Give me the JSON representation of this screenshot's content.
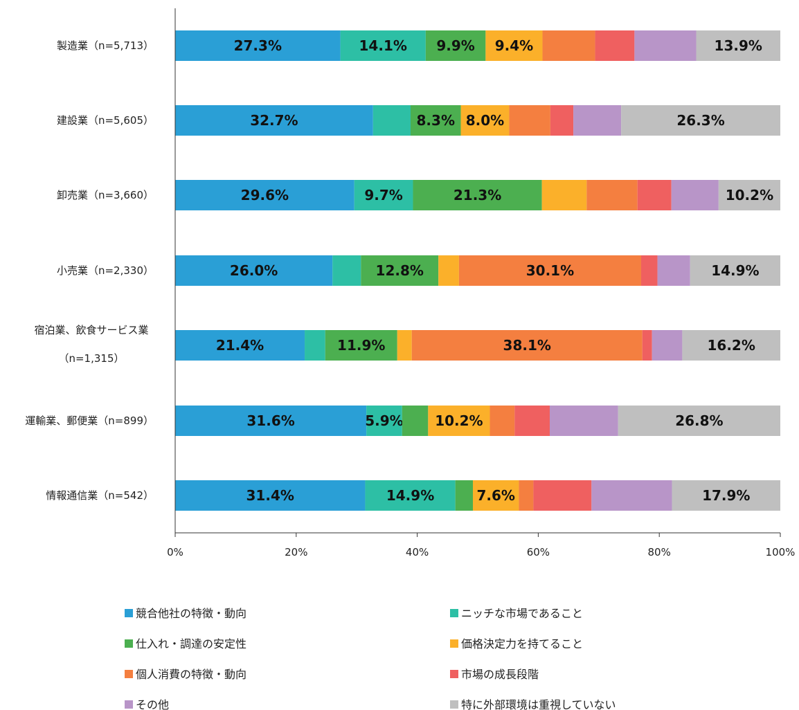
{
  "chart_data": {
    "type": "bar",
    "orientation": "horizontal",
    "stacked": "percent",
    "categories": [
      [
        "製造業（n=5,713）"
      ],
      [
        "建設業（n=5,605）"
      ],
      [
        "卸売業（n=3,660）"
      ],
      [
        "小売業（n=2,330）"
      ],
      [
        "宿泊業、飲食サービス業",
        "（n=1,315）"
      ],
      [
        "運輸業、郵便業（n=899）"
      ],
      [
        "情報通信業（n=542）"
      ]
    ],
    "xlim": [
      0,
      100
    ],
    "xticks": [
      "0%",
      "20%",
      "40%",
      "60%",
      "80%",
      "100%"
    ],
    "legend_position": "bottom",
    "grid": false,
    "series": [
      {
        "name": "競合他社の特徴・動向",
        "color": "#2a9fd6",
        "values": [
          27.3,
          32.7,
          29.6,
          26.0,
          21.4,
          31.6,
          31.4
        ],
        "labels": [
          "27.3%",
          "32.7%",
          "29.6%",
          "26.0%",
          "21.4%",
          "31.6%",
          "31.4%"
        ]
      },
      {
        "name": "ニッチな市場であること",
        "color": "#2dbfa5",
        "values": [
          14.1,
          6.2,
          9.7,
          4.7,
          3.4,
          5.9,
          14.9
        ],
        "labels": [
          "14.1%",
          null,
          "9.7%",
          null,
          null,
          "5.9%",
          "14.9%"
        ]
      },
      {
        "name": "仕入れ・調達の安定性",
        "color": "#4caf50",
        "values": [
          9.9,
          8.3,
          21.3,
          12.8,
          11.9,
          4.3,
          2.9
        ],
        "labels": [
          "9.9%",
          "8.3%",
          "21.3%",
          "12.8%",
          "11.9%",
          null,
          null
        ]
      },
      {
        "name": "価格決定力を持てること",
        "color": "#fbb02a",
        "values": [
          9.4,
          8.0,
          7.4,
          3.4,
          2.4,
          10.2,
          7.6
        ],
        "labels": [
          "9.4%",
          "8.0%",
          null,
          null,
          null,
          "10.2%",
          "7.6%"
        ]
      },
      {
        "name": "個人消費の特徴・動向",
        "color": "#f47f40",
        "values": [
          8.7,
          6.8,
          8.4,
          30.1,
          38.1,
          4.1,
          2.4
        ],
        "labels": [
          null,
          null,
          null,
          "30.1%",
          "38.1%",
          null,
          null
        ]
      },
      {
        "name": "市場の成長段階",
        "color": "#ef6060",
        "values": [
          6.5,
          3.8,
          5.6,
          2.7,
          1.6,
          5.8,
          9.6
        ],
        "labels": [
          null,
          null,
          null,
          null,
          null,
          null,
          null
        ]
      },
      {
        "name": "その他",
        "color": "#b895c8",
        "values": [
          10.2,
          7.9,
          7.8,
          5.4,
          5.0,
          11.3,
          13.3
        ],
        "labels": [
          null,
          null,
          null,
          null,
          null,
          null,
          null
        ]
      },
      {
        "name": "特に外部環境は重視していない",
        "color": "#bfbfbf",
        "values": [
          13.9,
          26.3,
          10.2,
          14.9,
          16.2,
          26.8,
          17.9
        ],
        "labels": [
          "13.9%",
          "26.3%",
          "10.2%",
          "14.9%",
          "16.2%",
          "26.8%",
          "17.9%"
        ]
      }
    ]
  }
}
